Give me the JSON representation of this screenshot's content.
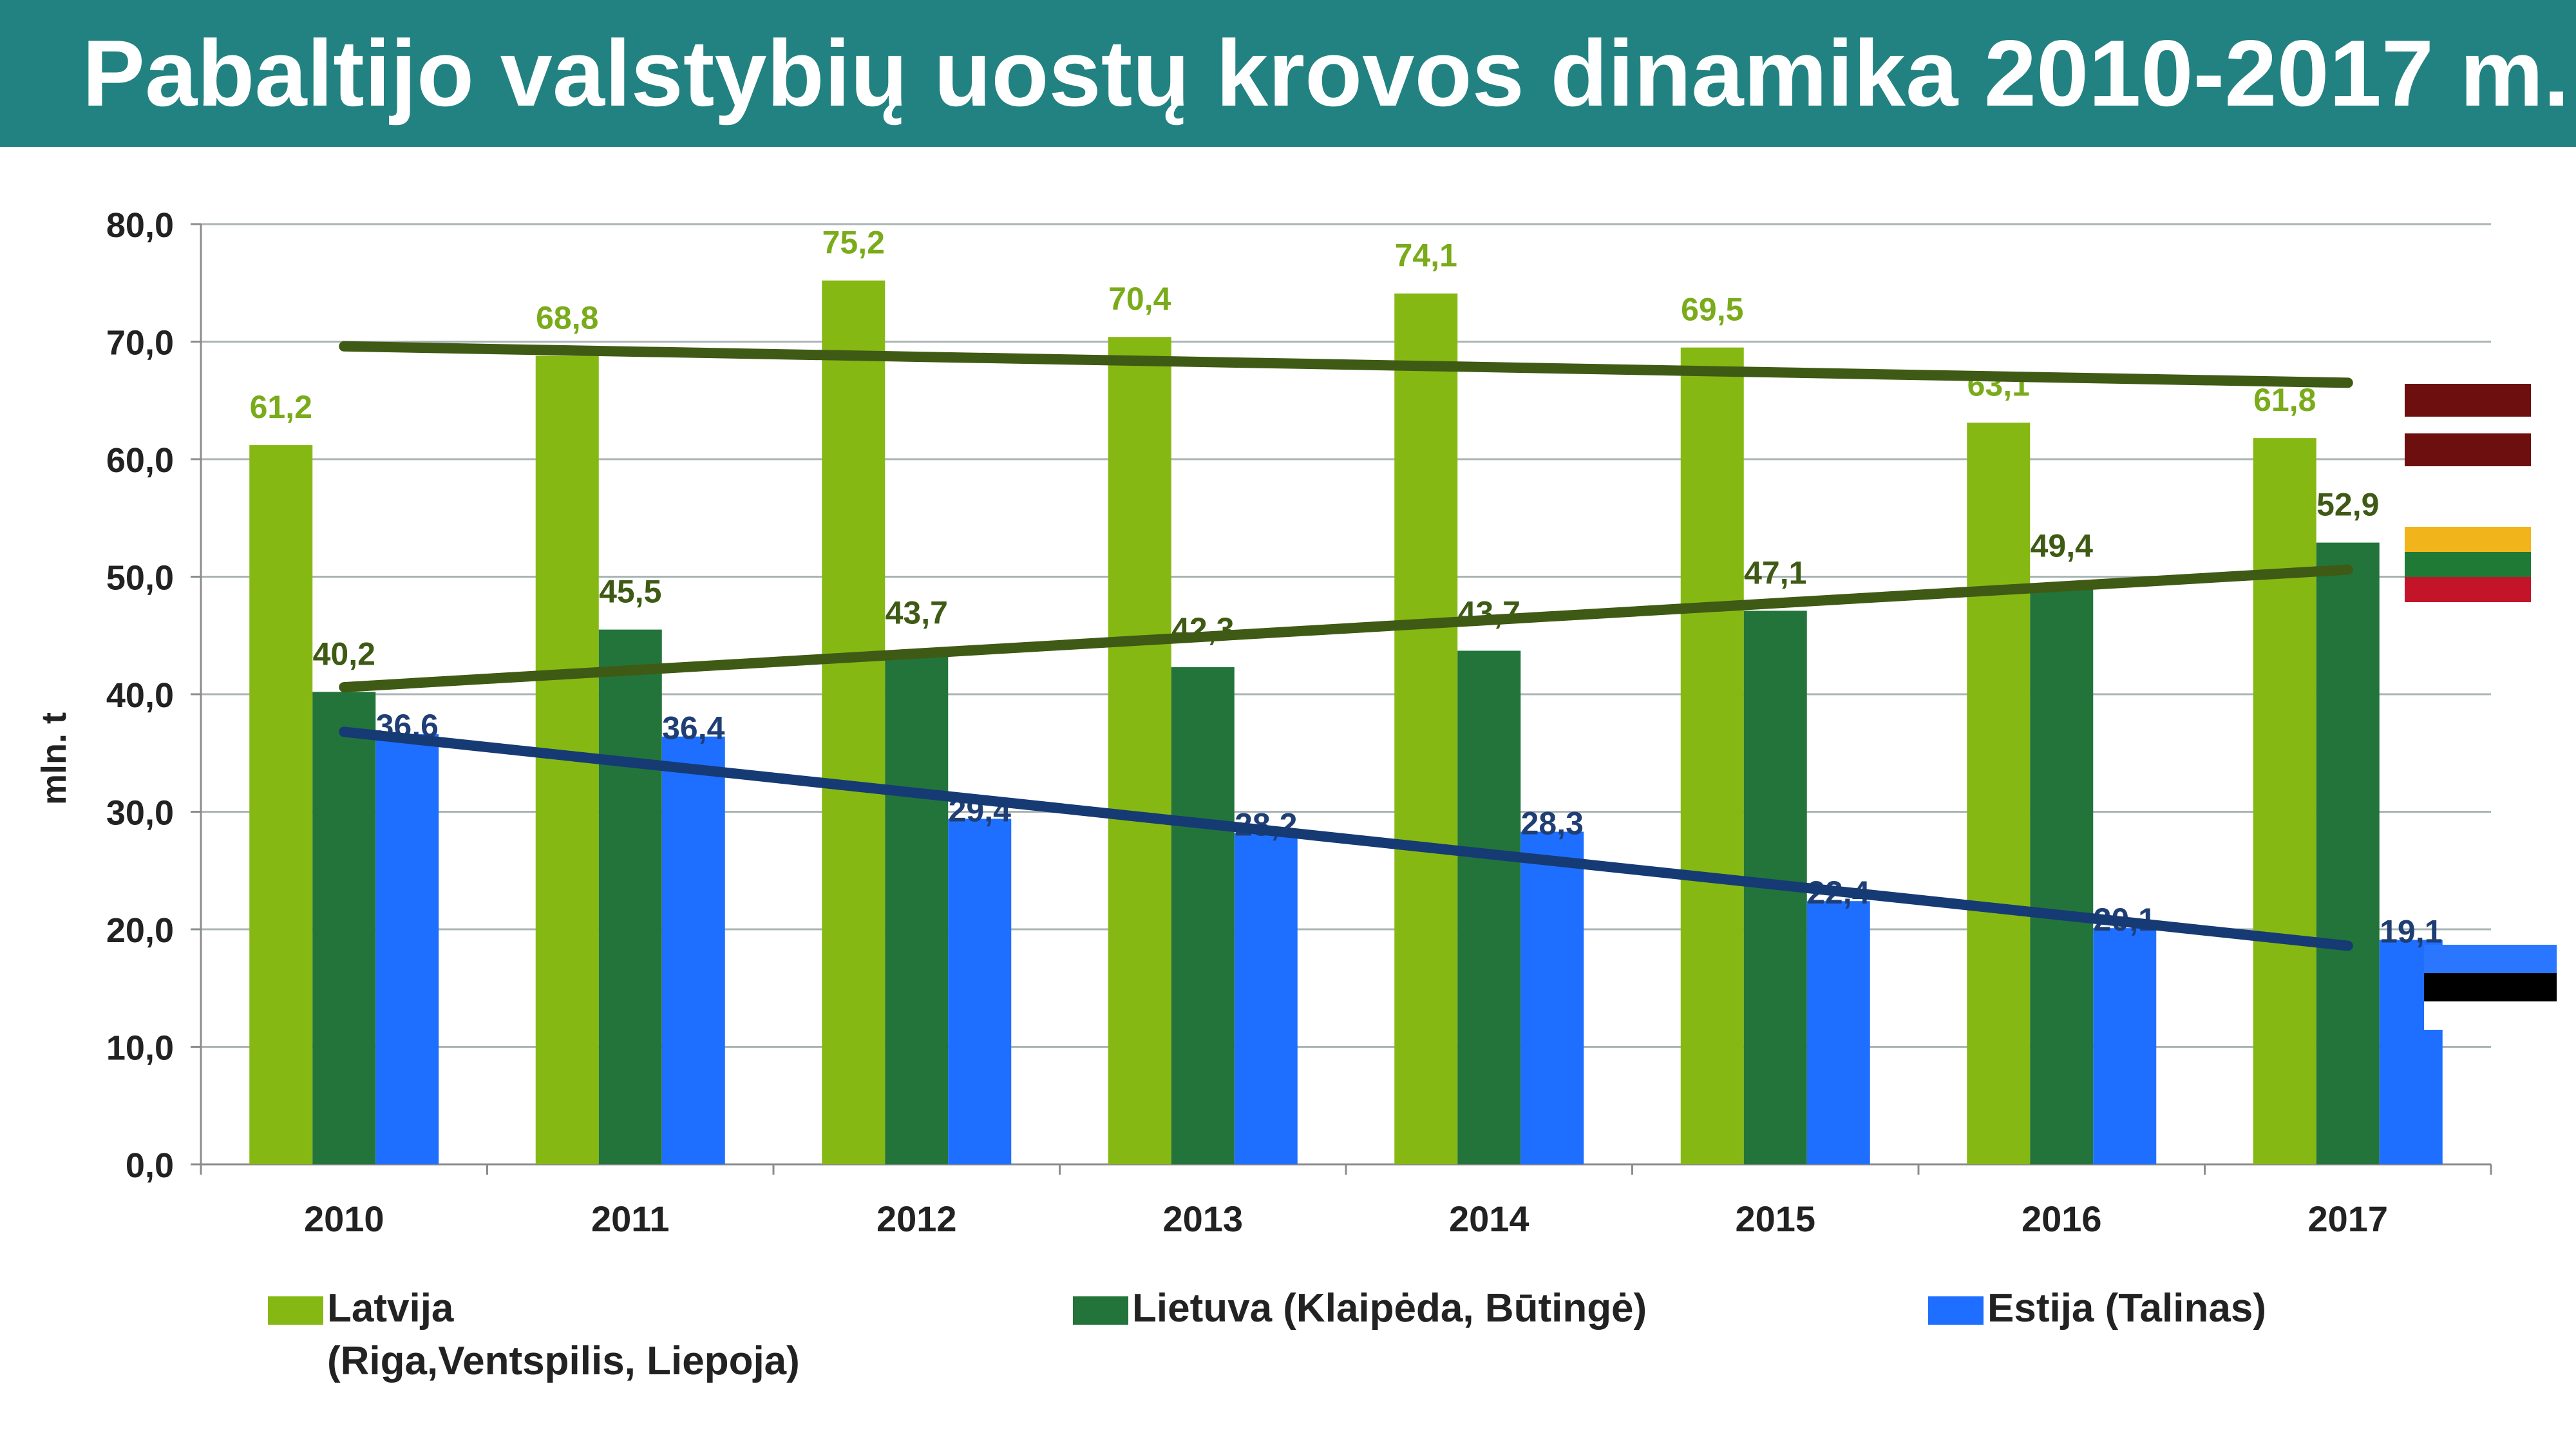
{
  "title": "Pabaltijo valstybių uostų krovos dinamika 2010-2017 m.",
  "chart_data": {
    "type": "bar",
    "title": "Pabaltijo valstybių uostų krovos dinamika 2010-2017 m.",
    "xlabel": "",
    "ylabel": "mln. t",
    "ylim": [
      0,
      80
    ],
    "y_ticks": [
      "0,0",
      "10,0",
      "20,0",
      "30,0",
      "40,0",
      "50,0",
      "60,0",
      "70,0",
      "80,0"
    ],
    "grid": true,
    "categories": [
      "2010",
      "2011",
      "2012",
      "2013",
      "2014",
      "2015",
      "2016",
      "2017"
    ],
    "series": [
      {
        "name": "Latvija",
        "name_line2": "(Riga,Ventspilis, Liepoja)",
        "color": "#86b813",
        "label_color": "#7aab1a",
        "values": [
          61.2,
          68.8,
          75.2,
          70.4,
          74.1,
          69.5,
          63.1,
          61.8
        ],
        "labels": [
          "61,2",
          "68,8",
          "75,2",
          "70,4",
          "74,1",
          "69,5",
          "63,1",
          "61,8"
        ],
        "trend": {
          "start": 69.6,
          "end": 66.5,
          "color": "#3e5a14"
        }
      },
      {
        "name": "Lietuva (Klaipėda, Būtingė)",
        "color": "#23743a",
        "label_color": "#3e5a14",
        "values": [
          40.2,
          45.5,
          43.7,
          42.3,
          43.7,
          47.1,
          49.4,
          52.9
        ],
        "labels": [
          "40,2",
          "45,5",
          "43,7",
          "42,3",
          "43,7",
          "47,1",
          "49,4",
          "52,9"
        ],
        "trend": {
          "start": 40.6,
          "end": 50.6,
          "color": "#3e5a14"
        }
      },
      {
        "name": "Estija (Talinas)",
        "color": "#1e6fff",
        "label_color": "#1f3f74",
        "values": [
          36.6,
          36.4,
          29.4,
          28.2,
          28.3,
          22.4,
          20.1,
          19.1
        ],
        "labels": [
          "36,6",
          "36,4",
          "29,4",
          "28,2",
          "28,3",
          "22,4",
          "20,1",
          "19,1"
        ],
        "trend": {
          "start": 36.8,
          "end": 18.6,
          "color": "#163a74"
        }
      }
    ],
    "legend_position": "bottom"
  },
  "flags": {
    "latvia": {
      "colors": [
        "#6e0f0f",
        "#ffffff",
        "#6e0f0f"
      ]
    },
    "lithuania": {
      "colors": [
        "#f2b41b",
        "#1e7a35",
        "#c4142a"
      ]
    },
    "estonia": {
      "colors": [
        "#2a76ff",
        "#000000",
        "#ffffff"
      ]
    }
  }
}
